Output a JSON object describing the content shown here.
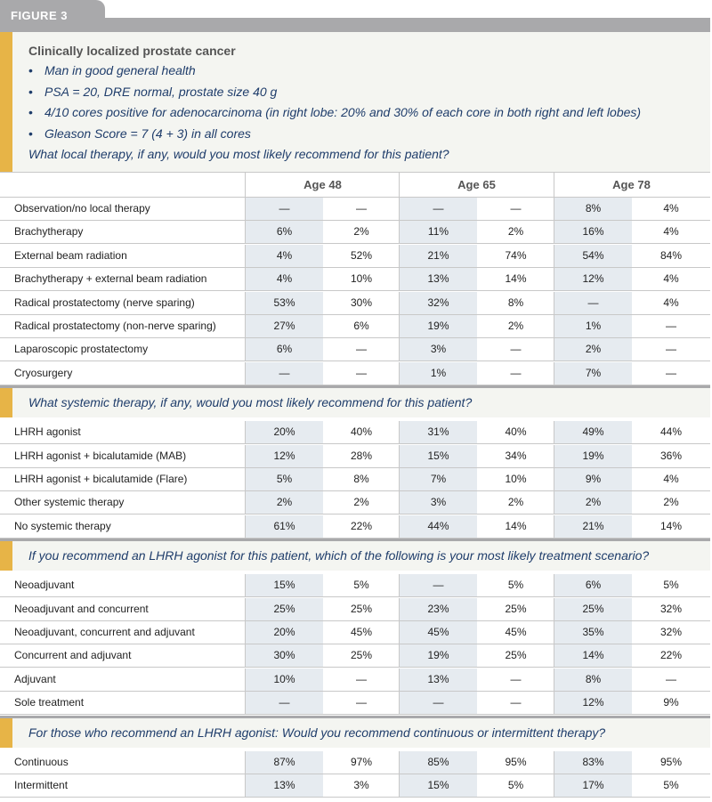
{
  "figure_label": "FIGURE 3",
  "intro": {
    "title": "Clinically localized prostate cancer",
    "bullets": [
      "Man in good general health",
      "PSA = 20, DRE normal, prostate size 40 g",
      "4/10 cores positive for adenocarcinoma (in right lobe: 20% and 30% of each core in both right and left lobes)",
      "Gleason Score = 7 (4 + 3) in all cores"
    ],
    "question": "What local therapy, if any, would you most likely recommend for this patient?"
  },
  "headers": [
    "Age 48",
    "Age 65",
    "Age 78"
  ],
  "sections": [
    {
      "question": "",
      "rows": [
        {
          "label": "Observation/no local therapy",
          "values": [
            "—",
            "—",
            "—",
            "—",
            "8%",
            "4%"
          ]
        },
        {
          "label": "Brachytherapy",
          "values": [
            "6%",
            "2%",
            "11%",
            "2%",
            "16%",
            "4%"
          ]
        },
        {
          "label": "External beam radiation",
          "values": [
            "4%",
            "52%",
            "21%",
            "74%",
            "54%",
            "84%"
          ]
        },
        {
          "label": "Brachytherapy + external beam radiation",
          "values": [
            "4%",
            "10%",
            "13%",
            "14%",
            "12%",
            "4%"
          ]
        },
        {
          "label": "Radical prostatectomy (nerve sparing)",
          "values": [
            "53%",
            "30%",
            "32%",
            "8%",
            "—",
            "4%"
          ]
        },
        {
          "label": "Radical prostatectomy (non-nerve sparing)",
          "values": [
            "27%",
            "6%",
            "19%",
            "2%",
            "1%",
            "—"
          ]
        },
        {
          "label": "Laparoscopic prostatectomy",
          "values": [
            "6%",
            "—",
            "3%",
            "—",
            "2%",
            "—"
          ]
        },
        {
          "label": "Cryosurgery",
          "values": [
            "—",
            "—",
            "1%",
            "—",
            "7%",
            "—"
          ]
        }
      ]
    },
    {
      "question": "What systemic therapy, if any, would you most likely recommend for this patient?",
      "rows": [
        {
          "label": "LHRH agonist",
          "values": [
            "20%",
            "40%",
            "31%",
            "40%",
            "49%",
            "44%"
          ]
        },
        {
          "label": "LHRH agonist + bicalutamide (MAB)",
          "values": [
            "12%",
            "28%",
            "15%",
            "34%",
            "19%",
            "36%"
          ]
        },
        {
          "label": "LHRH agonist + bicalutamide (Flare)",
          "values": [
            "5%",
            "8%",
            "7%",
            "10%",
            "9%",
            "4%"
          ]
        },
        {
          "label": "Other systemic therapy",
          "values": [
            "2%",
            "2%",
            "3%",
            "2%",
            "2%",
            "2%"
          ]
        },
        {
          "label": "No systemic therapy",
          "values": [
            "61%",
            "22%",
            "44%",
            "14%",
            "21%",
            "14%"
          ]
        }
      ]
    },
    {
      "question": "If you recommend an LHRH agonist for this patient, which of the following is your most likely treatment scenario?",
      "rows": [
        {
          "label": "Neoadjuvant",
          "values": [
            "15%",
            "5%",
            "—",
            "5%",
            "6%",
            "5%"
          ]
        },
        {
          "label": "Neoadjuvant and concurrent",
          "values": [
            "25%",
            "25%",
            "23%",
            "25%",
            "25%",
            "32%"
          ]
        },
        {
          "label": "Neoadjuvant, concurrent and adjuvant",
          "values": [
            "20%",
            "45%",
            "45%",
            "45%",
            "35%",
            "32%"
          ]
        },
        {
          "label": "Concurrent and adjuvant",
          "values": [
            "30%",
            "25%",
            "19%",
            "25%",
            "14%",
            "22%"
          ]
        },
        {
          "label": "Adjuvant",
          "values": [
            "10%",
            "—",
            "13%",
            "—",
            "8%",
            "—"
          ]
        },
        {
          "label": "Sole treatment",
          "values": [
            "—",
            "—",
            "—",
            "—",
            "12%",
            "9%"
          ]
        }
      ]
    },
    {
      "question": "For those who recommend an LHRH agonist: Would you recommend continuous or intermittent therapy?",
      "rows": [
        {
          "label": "Continuous",
          "values": [
            "87%",
            "97%",
            "85%",
            "95%",
            "83%",
            "95%"
          ]
        },
        {
          "label": "Intermittent",
          "values": [
            "13%",
            "3%",
            "15%",
            "5%",
            "17%",
            "5%"
          ]
        }
      ]
    }
  ]
}
